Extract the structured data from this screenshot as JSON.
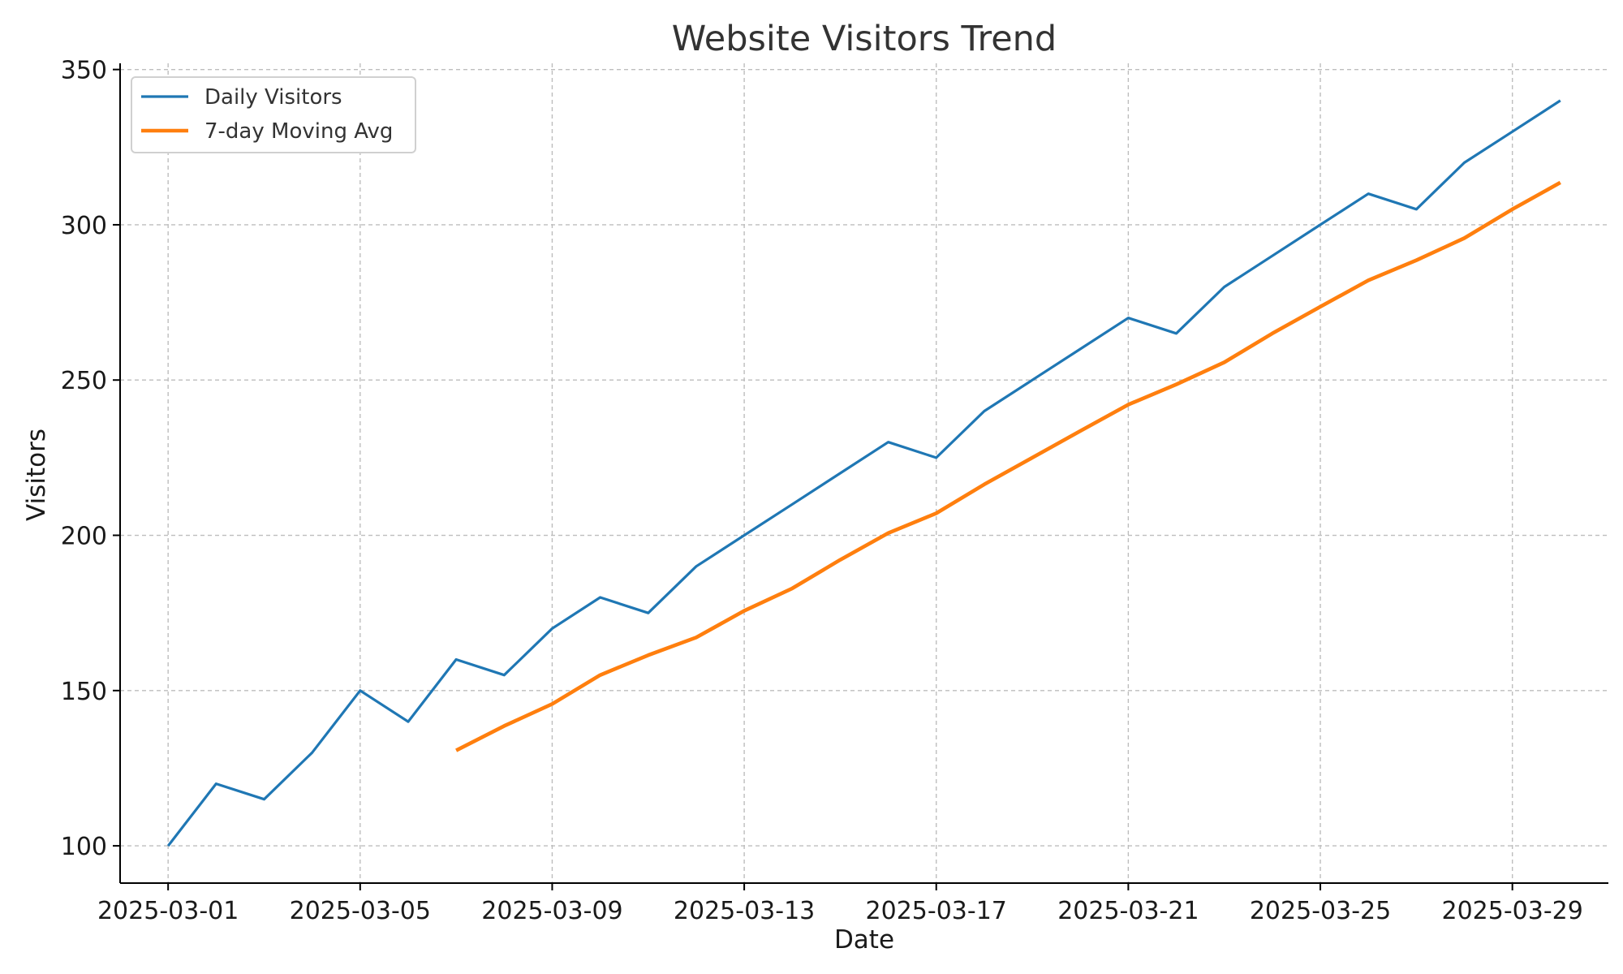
{
  "chart_data": {
    "type": "line",
    "title": "Website Visitors Trend",
    "xlabel": "Date",
    "ylabel": "Visitors",
    "x": [
      "2025-03-01",
      "2025-03-02",
      "2025-03-03",
      "2025-03-04",
      "2025-03-05",
      "2025-03-06",
      "2025-03-07",
      "2025-03-08",
      "2025-03-09",
      "2025-03-10",
      "2025-03-11",
      "2025-03-12",
      "2025-03-13",
      "2025-03-14",
      "2025-03-15",
      "2025-03-16",
      "2025-03-17",
      "2025-03-18",
      "2025-03-19",
      "2025-03-20",
      "2025-03-21",
      "2025-03-22",
      "2025-03-23",
      "2025-03-24",
      "2025-03-25",
      "2025-03-26",
      "2025-03-27",
      "2025-03-28",
      "2025-03-29",
      "2025-03-30"
    ],
    "xticks": [
      "2025-03-01",
      "2025-03-05",
      "2025-03-09",
      "2025-03-13",
      "2025-03-17",
      "2025-03-21",
      "2025-03-25",
      "2025-03-29"
    ],
    "xlim": [
      "2025-02-28",
      "2025-03-31"
    ],
    "yticks": [
      100,
      150,
      200,
      250,
      300,
      350
    ],
    "ylim": [
      88,
      352
    ],
    "grid": true,
    "legend": "upper-left",
    "series": [
      {
        "name": "Daily Visitors",
        "color": "#1f77b4",
        "values": [
          100,
          120,
          115,
          130,
          150,
          140,
          160,
          155,
          170,
          180,
          175,
          190,
          200,
          210,
          220,
          230,
          225,
          240,
          250,
          260,
          270,
          265,
          280,
          290,
          300,
          310,
          305,
          320,
          330,
          340
        ]
      },
      {
        "name": "7-day Moving Avg",
        "color": "#ff7f0e",
        "values": [
          null,
          null,
          null,
          null,
          null,
          null,
          130.7,
          138.6,
          145.7,
          155.0,
          161.4,
          167.1,
          175.7,
          182.9,
          192.1,
          200.7,
          207.1,
          216.4,
          225.0,
          233.6,
          242.1,
          248.6,
          255.7,
          265.0,
          273.6,
          282.1,
          288.6,
          295.7,
          305.0,
          313.6
        ]
      }
    ]
  }
}
